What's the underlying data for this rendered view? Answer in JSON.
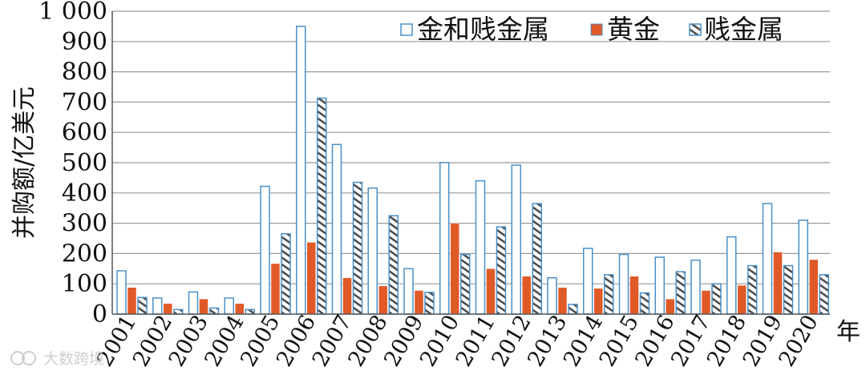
{
  "chart_data": {
    "type": "bar",
    "categories": [
      "2001",
      "2002",
      "2003",
      "2004",
      "2005",
      "2006",
      "2007",
      "2008",
      "2009",
      "2010",
      "2011",
      "2012",
      "2013",
      "2014",
      "2015",
      "2016",
      "2017",
      "2018",
      "2019",
      "2020"
    ],
    "series": [
      {
        "name": "金和贱金属",
        "values": [
          143,
          53,
          73,
          53,
          422,
          950,
          560,
          416,
          150,
          500,
          440,
          492,
          120,
          217,
          197,
          188,
          178,
          255,
          365,
          310
        ],
        "color": "#4a90c8",
        "style": "hollow"
      },
      {
        "name": "黄金",
        "values": [
          88,
          35,
          50,
          35,
          167,
          237,
          120,
          93,
          78,
          300,
          150,
          125,
          88,
          85,
          125,
          50,
          78,
          95,
          205,
          180
        ],
        "color": "#e05a28",
        "style": "solid"
      },
      {
        "name": "贱金属",
        "values": [
          55,
          15,
          20,
          15,
          265,
          713,
          435,
          325,
          72,
          197,
          288,
          365,
          32,
          130,
          70,
          140,
          100,
          160,
          160,
          130
        ],
        "color": "#4a90c8",
        "style": "hatched"
      }
    ],
    "xlabel": "年",
    "ylabel": "并购额/亿美元",
    "ylim": [
      0,
      1000
    ],
    "yticks": [
      "0",
      "100",
      "200",
      "300",
      "400",
      "500",
      "600",
      "700",
      "800",
      "900",
      "1 000"
    ],
    "grid": true,
    "legend_position": "top-right"
  },
  "watermark": {
    "text": "大数跨境",
    "icon": "logo-icon"
  }
}
